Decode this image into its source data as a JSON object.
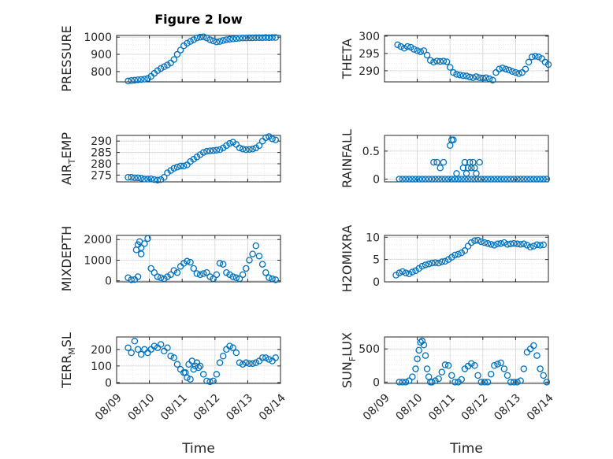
{
  "chart_data": [
    {
      "type": "scatter",
      "panel": "pressure",
      "title": "Figure 2 low",
      "ylabel": "PRESSURE",
      "xlabel": "",
      "ylim": [
        740,
        1010
      ],
      "yticks": [
        800,
        900,
        1000
      ],
      "ytick_labels": [
        "800",
        "900",
        "1000"
      ],
      "xlim": [
        0,
        5
      ],
      "x_tick_labels_visible": false,
      "grid": "on",
      "marker": "open-circle",
      "x": [
        0.35,
        0.45,
        0.55,
        0.65,
        0.75,
        0.85,
        0.95,
        1.05,
        1.15,
        1.25,
        1.35,
        1.45,
        1.55,
        1.65,
        1.75,
        1.85,
        1.95,
        2.05,
        2.15,
        2.25,
        2.35,
        2.45,
        2.55,
        2.65,
        2.75,
        2.85,
        2.95,
        3.05,
        3.15,
        3.25,
        3.35,
        3.45,
        3.55,
        3.65,
        3.75,
        3.85,
        3.95,
        4.05,
        4.15,
        4.25,
        4.35,
        4.45,
        4.55,
        4.65,
        4.75,
        4.85
      ],
      "y": [
        745,
        748,
        750,
        752,
        754,
        756,
        760,
        772,
        790,
        805,
        818,
        828,
        838,
        850,
        870,
        900,
        925,
        950,
        965,
        975,
        985,
        995,
        1000,
        1002,
        995,
        985,
        978,
        972,
        975,
        980,
        985,
        988,
        990,
        992,
        994,
        995,
        995,
        996,
        996,
        997,
        997,
        997,
        998,
        997,
        998,
        998
      ]
    },
    {
      "type": "scatter",
      "panel": "theta",
      "ylabel": "THETA",
      "xlabel": "",
      "ylim": [
        286.8,
        300.2
      ],
      "yticks": [
        290,
        295,
        300
      ],
      "ytick_labels": [
        "290",
        "295",
        "300"
      ],
      "xlim": [
        0,
        5
      ],
      "x_tick_labels_visible": false,
      "grid": "on",
      "marker": "open-circle",
      "x": [
        0.4,
        0.5,
        0.6,
        0.7,
        0.8,
        0.9,
        1.0,
        1.1,
        1.2,
        1.3,
        1.4,
        1.5,
        1.6,
        1.7,
        1.8,
        1.9,
        2.0,
        2.1,
        2.2,
        2.3,
        2.4,
        2.5,
        2.6,
        2.7,
        2.8,
        2.9,
        3.0,
        3.1,
        3.2,
        3.3,
        3.4,
        3.5,
        3.6,
        3.7,
        3.8,
        3.9,
        4.0,
        4.1,
        4.2,
        4.3,
        4.4,
        4.5,
        4.6,
        4.7,
        4.8,
        4.9,
        5.0
      ],
      "y": [
        297.5,
        297,
        296.5,
        297,
        296.8,
        296.2,
        295.8,
        295.5,
        295.8,
        294.5,
        293,
        292.5,
        292.8,
        292.7,
        292.8,
        292.6,
        291,
        289.5,
        289,
        288.8,
        288.6,
        288.5,
        288.2,
        288.0,
        288.3,
        288.0,
        287.9,
        288.0,
        287.7,
        287.3,
        289.5,
        290.5,
        290.8,
        290.5,
        290.2,
        289.8,
        289.5,
        289.2,
        289.5,
        290.5,
        292.5,
        294,
        294.2,
        294.0,
        293.5,
        292.5,
        291.8
      ]
    },
    {
      "type": "scatter",
      "panel": "air_temp",
      "ylabel": "AIR",
      "ylabel_subscript": "T",
      "ylabel_suffix": "EMP",
      "xlabel": "",
      "ylim": [
        272,
        292.5
      ],
      "yticks": [
        275,
        280,
        285,
        290
      ],
      "ytick_labels": [
        "275",
        "280",
        "285",
        "290"
      ],
      "xlim": [
        0,
        5
      ],
      "x_tick_labels_visible": false,
      "grid": "on",
      "marker": "open-circle",
      "x": [
        0.35,
        0.45,
        0.55,
        0.65,
        0.75,
        0.85,
        0.95,
        1.05,
        1.15,
        1.25,
        1.35,
        1.45,
        1.55,
        1.65,
        1.75,
        1.85,
        1.95,
        2.05,
        2.15,
        2.25,
        2.35,
        2.45,
        2.55,
        2.65,
        2.75,
        2.85,
        2.95,
        3.05,
        3.15,
        3.25,
        3.35,
        3.45,
        3.55,
        3.65,
        3.75,
        3.85,
        3.95,
        4.05,
        4.15,
        4.25,
        4.35,
        4.45,
        4.55,
        4.65,
        4.75,
        4.85
      ],
      "y": [
        274,
        274,
        273.8,
        273.8,
        273.6,
        273.2,
        273.2,
        273.3,
        273,
        272.8,
        273,
        274,
        276,
        277,
        278,
        278.5,
        279,
        279,
        279.5,
        281,
        282,
        283,
        284,
        285,
        285.5,
        285.7,
        285.8,
        286,
        286.2,
        287,
        288,
        289,
        289.5,
        288.5,
        287,
        286.5,
        286.2,
        286.3,
        286.5,
        287,
        288,
        290,
        291.5,
        292,
        291,
        290.5
      ]
    },
    {
      "type": "scatter",
      "panel": "rainfall",
      "ylabel": "RAINFALL",
      "xlabel": "",
      "ylim": [
        -0.05,
        0.78
      ],
      "yticks": [
        0,
        0.5
      ],
      "ytick_labels": [
        "0",
        "0.5"
      ],
      "xlim": [
        0,
        5
      ],
      "x_tick_labels_visible": false,
      "grid": "on",
      "marker": "open-circle",
      "x": [
        0.45,
        0.55,
        0.65,
        0.75,
        0.85,
        0.95,
        1.05,
        1.15,
        1.25,
        1.35,
        1.45,
        1.55,
        1.65,
        1.75,
        1.85,
        1.95,
        2.05,
        2.15,
        2.25,
        2.35,
        2.45,
        2.55,
        2.65,
        2.75,
        2.85,
        2.95,
        3.05,
        3.15,
        3.25,
        3.35,
        3.45,
        3.55,
        3.65,
        3.75,
        3.85,
        3.95,
        4.05,
        4.15,
        4.25,
        4.35,
        4.45,
        4.55,
        4.65,
        4.75,
        4.85,
        4.95,
        1.5,
        1.6,
        1.7,
        1.8,
        2.0,
        2.05,
        2.1,
        2.2,
        2.4,
        2.45,
        2.5,
        2.55,
        2.6,
        2.65,
        2.7,
        2.75,
        2.8,
        2.9
      ],
      "y": [
        0,
        0,
        0,
        0,
        0,
        0,
        0,
        0,
        0,
        0,
        0,
        0,
        0,
        0,
        0,
        0,
        0,
        0,
        0,
        0,
        0,
        0,
        0,
        0,
        0,
        0,
        0,
        0,
        0,
        0,
        0,
        0,
        0,
        0,
        0,
        0,
        0,
        0,
        0,
        0,
        0,
        0,
        0,
        0,
        0,
        0,
        0.3,
        0.3,
        0.2,
        0.3,
        0.6,
        0.7,
        0.7,
        0.1,
        0.2,
        0.3,
        0.1,
        0.2,
        0.3,
        0.2,
        0.3,
        0.2,
        0.1,
        0.3
      ]
    },
    {
      "type": "scatter",
      "panel": "mixdepth",
      "ylabel": "MIXDEPTH",
      "xlabel": "",
      "ylim": [
        -50,
        2200
      ],
      "yticks": [
        0,
        1000,
        2000
      ],
      "ytick_labels": [
        "0",
        "1000",
        "2000"
      ],
      "xlim": [
        0,
        5
      ],
      "x_tick_labels_visible": false,
      "grid": "on",
      "marker": "open-circle",
      "x": [
        0.35,
        0.45,
        0.55,
        0.65,
        0.75,
        0.85,
        0.95,
        1.05,
        1.15,
        1.25,
        1.35,
        1.45,
        1.55,
        1.65,
        1.75,
        1.85,
        1.95,
        2.05,
        2.15,
        2.25,
        2.35,
        2.45,
        2.55,
        2.65,
        2.75,
        2.85,
        2.95,
        3.05,
        3.15,
        3.25,
        3.35,
        3.45,
        3.55,
        3.65,
        3.75,
        3.85,
        3.95,
        4.05,
        4.15,
        4.25,
        4.35,
        4.45,
        4.55,
        4.65,
        4.75,
        4.85,
        0.6,
        0.65,
        0.7,
        0.75
      ],
      "y": [
        150,
        50,
        60,
        200,
        1300,
        1800,
        2050,
        600,
        400,
        200,
        150,
        100,
        200,
        300,
        500,
        400,
        700,
        850,
        950,
        900,
        600,
        350,
        300,
        350,
        400,
        200,
        100,
        300,
        850,
        800,
        400,
        300,
        200,
        150,
        100,
        300,
        600,
        1000,
        1300,
        1700,
        1200,
        800,
        400,
        150,
        100,
        50,
        1500,
        1750,
        1900,
        1600
      ]
    },
    {
      "type": "scatter",
      "panel": "h2omixra",
      "ylabel": "H2OMIXRA",
      "xlabel": "",
      "ylim": [
        0,
        10.4
      ],
      "yticks": [
        0,
        5,
        10
      ],
      "ytick_labels": [
        "0",
        "5",
        "10"
      ],
      "xlim": [
        0,
        5
      ],
      "x_tick_labels_visible": false,
      "grid": "on",
      "marker": "open-circle",
      "x": [
        0.35,
        0.45,
        0.55,
        0.65,
        0.75,
        0.85,
        0.95,
        1.05,
        1.15,
        1.25,
        1.35,
        1.45,
        1.55,
        1.65,
        1.75,
        1.85,
        1.95,
        2.05,
        2.15,
        2.25,
        2.35,
        2.45,
        2.55,
        2.65,
        2.75,
        2.85,
        2.95,
        3.05,
        3.15,
        3.25,
        3.35,
        3.45,
        3.55,
        3.65,
        3.75,
        3.85,
        3.95,
        4.05,
        4.15,
        4.25,
        4.35,
        4.45,
        4.55,
        4.65,
        4.75,
        4.85
      ],
      "y": [
        1.5,
        2,
        2.3,
        2,
        1.8,
        2.2,
        2.5,
        3,
        3.5,
        3.8,
        4,
        4.2,
        4.3,
        4.2,
        4.5,
        4.6,
        5,
        5.5,
        6,
        6.2,
        6.5,
        7,
        8,
        8.8,
        9.2,
        9.3,
        9,
        8.8,
        8.6,
        8.4,
        8.2,
        8.5,
        8.6,
        8.8,
        8.4,
        8.5,
        8.6,
        8.5,
        8.4,
        8.5,
        8.2,
        7.8,
        8,
        8.3,
        8.2,
        8.3
      ]
    },
    {
      "type": "scatter",
      "panel": "terr_msl",
      "ylabel": "TERR",
      "ylabel_subscript": "M",
      "ylabel_suffix": "SL",
      "xlabel": "Time",
      "ylim": [
        -5,
        275
      ],
      "yticks": [
        0,
        100,
        200
      ],
      "ytick_labels": [
        "0",
        "100",
        "200"
      ],
      "xlim": [
        0,
        5
      ],
      "x_tick_labels": [
        "08/09",
        "08/10",
        "08/11",
        "08/12",
        "08/13",
        "08/14"
      ],
      "grid": "on",
      "marker": "open-circle",
      "x": [
        0.35,
        0.45,
        0.55,
        0.65,
        0.75,
        0.85,
        0.95,
        1.05,
        1.15,
        1.25,
        1.35,
        1.45,
        1.55,
        1.65,
        1.75,
        1.85,
        1.95,
        2.05,
        2.15,
        2.25,
        2.35,
        2.45,
        2.55,
        2.65,
        2.75,
        2.85,
        2.95,
        3.05,
        3.15,
        3.25,
        3.35,
        3.45,
        3.55,
        3.65,
        3.75,
        3.85,
        3.95,
        4.05,
        4.15,
        4.25,
        4.35,
        4.45,
        4.55,
        4.65,
        4.75,
        4.85,
        2.3,
        2.4,
        2.5,
        2.2,
        2.1
      ],
      "y": [
        210,
        180,
        250,
        200,
        170,
        200,
        180,
        200,
        220,
        210,
        230,
        190,
        210,
        160,
        150,
        110,
        80,
        60,
        30,
        20,
        80,
        120,
        100,
        50,
        10,
        5,
        10,
        50,
        120,
        160,
        200,
        220,
        210,
        180,
        120,
        110,
        120,
        115,
        115,
        120,
        130,
        150,
        150,
        140,
        130,
        150,
        130,
        100,
        90,
        110,
        60
      ]
    },
    {
      "type": "scatter",
      "panel": "sun_flux",
      "ylabel": "SUN",
      "ylabel_subscript": "F",
      "ylabel_suffix": "LUX",
      "xlabel": "Time",
      "ylim": [
        -20,
        680
      ],
      "yticks": [
        0,
        500
      ],
      "ytick_labels": [
        "0",
        "500"
      ],
      "xlim": [
        0,
        5
      ],
      "x_tick_labels": [
        "08/09",
        "08/10",
        "08/11",
        "08/12",
        "08/13",
        "08/14"
      ],
      "grid": "on",
      "marker": "open-circle",
      "x": [
        0.45,
        0.55,
        0.65,
        0.75,
        0.85,
        0.95,
        1.0,
        1.05,
        1.1,
        1.15,
        1.2,
        1.25,
        1.3,
        1.35,
        1.4,
        1.45,
        1.55,
        1.65,
        1.75,
        1.85,
        1.95,
        2.05,
        2.15,
        2.25,
        2.35,
        2.45,
        2.55,
        2.65,
        2.75,
        2.85,
        2.95,
        3.05,
        3.15,
        3.25,
        3.35,
        3.45,
        3.55,
        3.65,
        3.75,
        3.85,
        3.95,
        4.05,
        4.15,
        4.25,
        4.35,
        4.45,
        4.55,
        4.65,
        4.75,
        4.85,
        4.95
      ],
      "y": [
        0,
        0,
        0,
        20,
        80,
        200,
        350,
        480,
        600,
        620,
        560,
        400,
        200,
        80,
        0,
        0,
        20,
        50,
        150,
        260,
        250,
        100,
        0,
        0,
        40,
        200,
        240,
        280,
        250,
        100,
        0,
        0,
        0,
        120,
        250,
        270,
        290,
        200,
        100,
        0,
        0,
        0,
        20,
        200,
        450,
        500,
        550,
        400,
        200,
        100,
        0
      ]
    }
  ]
}
